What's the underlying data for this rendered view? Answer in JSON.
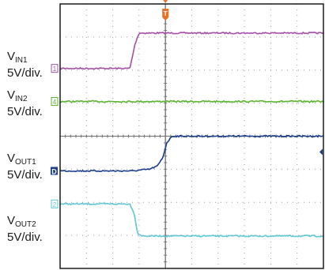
{
  "chart_data": {
    "type": "line",
    "grid": true,
    "x_range": [
      -4,
      6
    ],
    "y_range": [
      -4,
      4
    ],
    "grid_divisions": {
      "x": 10,
      "y": 8
    },
    "colors": {
      "ch1": "#a450a8",
      "ch4": "#58b52c",
      "chD": "#1a3d8f",
      "ch2": "#5ec7d4",
      "grid": "#9a9a9a",
      "frame": "#1a1a1a",
      "cursor": "#7a7a7a",
      "trigger": "#e8722a"
    },
    "labels": [
      {
        "id": "vin1",
        "name": "V",
        "sub": "IN1",
        "scale": "5V/div."
      },
      {
        "id": "vin2",
        "name": "V",
        "sub": "IN2",
        "scale": "5V/div."
      },
      {
        "id": "vout1",
        "name": "V",
        "sub": "OUT1",
        "scale": "5V/div."
      },
      {
        "id": "vout2",
        "name": "V",
        "sub": "OUT2",
        "scale": "5V/div."
      }
    ],
    "markers": [
      {
        "series": "vin1",
        "text": "1"
      },
      {
        "series": "vin2",
        "text": "4"
      },
      {
        "series": "vout1",
        "text": "D"
      },
      {
        "series": "vout2",
        "text": "2"
      }
    ],
    "trigger_marker": "T",
    "cursor_x": 0,
    "series": [
      {
        "id": "vin1",
        "color": "#a450a8",
        "points": [
          [
            -4,
            2.05
          ],
          [
            -1.35,
            2.05
          ],
          [
            -1.15,
            2.8
          ],
          [
            -1.0,
            3.12
          ],
          [
            6,
            3.12
          ]
        ]
      },
      {
        "id": "vin2",
        "color": "#58b52c",
        "points": [
          [
            -4,
            1.05
          ],
          [
            6,
            1.05
          ]
        ]
      },
      {
        "id": "vout1",
        "color": "#1a3d8f",
        "points": [
          [
            -4,
            -1.05
          ],
          [
            -1.25,
            -1.05
          ],
          [
            -0.6,
            -1.0
          ],
          [
            -0.3,
            -0.9
          ],
          [
            -0.1,
            -0.65
          ],
          [
            0.05,
            -0.2
          ],
          [
            0.25,
            0.0
          ],
          [
            6,
            0.0
          ]
        ]
      },
      {
        "id": "vout2",
        "color": "#5ec7d4",
        "points": [
          [
            -4,
            -2.05
          ],
          [
            -1.35,
            -2.05
          ],
          [
            -1.2,
            -2.3
          ],
          [
            -1.05,
            -2.95
          ],
          [
            -0.85,
            -3.02
          ],
          [
            6,
            -3.02
          ]
        ]
      }
    ]
  }
}
